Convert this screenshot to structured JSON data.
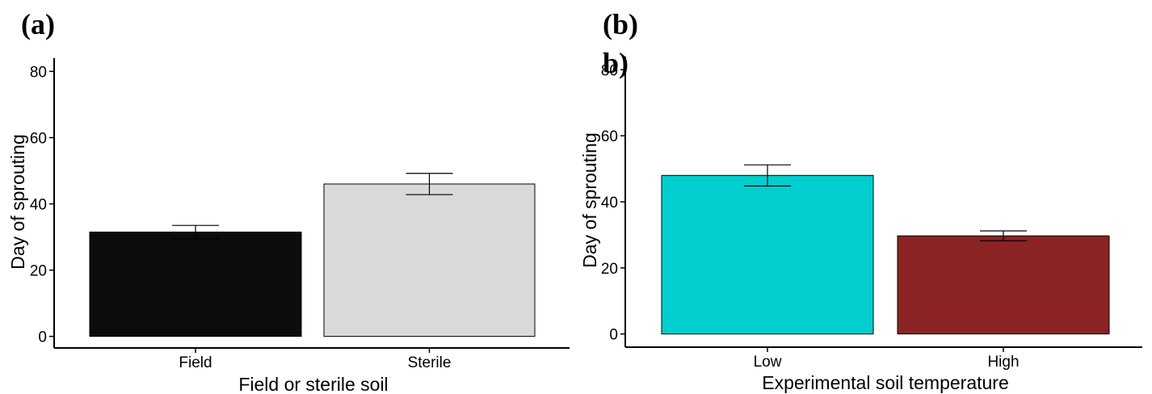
{
  "panels": [
    {
      "label": "(a)",
      "chart_data": {
        "type": "bar",
        "categories": [
          "Field",
          "Sterile"
        ],
        "values": [
          31.5,
          46.0
        ],
        "errors": [
          2.0,
          3.2
        ],
        "colors": [
          "#0c0c0c",
          "#d9d9d9"
        ],
        "xlabel": "Field or sterile soil",
        "ylabel": "Day of sprouting",
        "yticks": [
          0,
          20,
          40,
          60,
          80
        ],
        "ylim": [
          -3.5,
          84
        ],
        "grid": false
      }
    },
    {
      "label": "(b)",
      "overlay_label": "b)",
      "chart_data": {
        "type": "bar",
        "categories": [
          "Low",
          "High"
        ],
        "values": [
          48.0,
          29.7
        ],
        "errors": [
          3.2,
          1.5
        ],
        "colors": [
          "#00cecf",
          "#8b2324"
        ],
        "xlabel": "Experimental soil temperature",
        "ylabel": "Day of sprouting",
        "yticks": [
          0,
          20,
          40,
          60,
          80
        ],
        "ylim": [
          -4,
          84
        ],
        "grid": false
      }
    }
  ]
}
